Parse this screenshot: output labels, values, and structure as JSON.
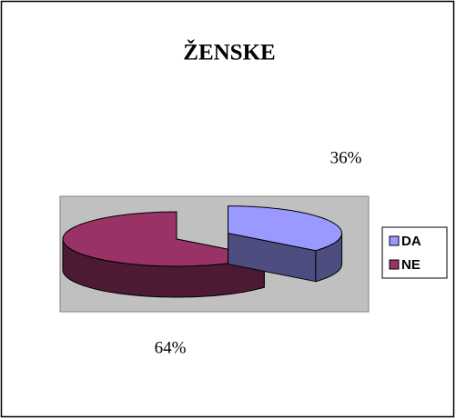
{
  "chart_data": {
    "type": "pie3d",
    "title": "ŽENSKE",
    "categories": [
      "DA",
      "NE"
    ],
    "values": [
      36,
      64
    ],
    "value_labels": [
      "36%",
      "64%"
    ],
    "colors": [
      "#9999ff",
      "#993366"
    ],
    "legend": "right"
  }
}
